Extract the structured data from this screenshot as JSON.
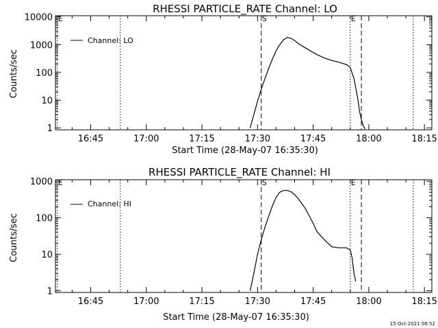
{
  "footer": {
    "timestamp": "15-Oct-2021 08:52"
  },
  "chart_data": [
    {
      "type": "line",
      "title": "RHESSI PARTICLE_RATE Channel: LO",
      "xlabel": "Start Time (28-May-07 16:35:30)",
      "ylabel": "Counts/sec",
      "legend": "Channel: LO",
      "legend_position": "top-left",
      "y_scale": "log",
      "xlim": [
        "16:35:30",
        "18:17:00"
      ],
      "ylim": [
        0.85,
        11000
      ],
      "x_ticks": [
        "16:45",
        "17:00",
        "17:15",
        "17:30",
        "17:45",
        "18:00",
        "18:15"
      ],
      "y_ticks": [
        "1",
        "10",
        "100",
        "1000",
        "10000"
      ],
      "markers": [
        {
          "label": "E",
          "time": "16:36:00",
          "style": "dotted"
        },
        {
          "label": "",
          "time": "16:53:00",
          "style": "dotted"
        },
        {
          "label": "S",
          "time": "17:31:00",
          "style": "dashed"
        },
        {
          "label": "E",
          "time": "17:55:00",
          "style": "dotted"
        },
        {
          "label": "",
          "time": "17:58:00",
          "style": "dashed"
        },
        {
          "label": "",
          "time": "18:12:00",
          "style": "dotted"
        }
      ],
      "series": [
        {
          "x": [
            "17:28:00",
            "17:29:00",
            "17:30:00",
            "17:31:00",
            "17:32:00",
            "17:33:00",
            "17:34:00",
            "17:35:00",
            "17:36:00",
            "17:37:00",
            "17:38:00",
            "17:39:00",
            "17:40:00",
            "17:41:00",
            "17:42:00",
            "17:44:00",
            "17:46:00",
            "17:48:00",
            "17:50:00",
            "17:52:00",
            "17:54:00",
            "17:55:00",
            "17:56:00",
            "17:57:00",
            "17:57:30",
            "17:58:00",
            "17:58:30",
            "17:59:00"
          ],
          "values": [
            1,
            3,
            9,
            25,
            60,
            140,
            300,
            600,
            1000,
            1500,
            1800,
            1700,
            1400,
            1100,
            900,
            620,
            440,
            330,
            270,
            230,
            190,
            150,
            60,
            12,
            4,
            2,
            1.2,
            0.9
          ]
        }
      ]
    },
    {
      "type": "line",
      "title": "RHESSI PARTICLE_RATE Channel: HI",
      "xlabel": "Start Time (28-May-07 16:35:30)",
      "ylabel": "Counts/sec",
      "legend": "Channel: HI",
      "legend_position": "top-left",
      "y_scale": "log",
      "xlim": [
        "16:35:30",
        "18:17:00"
      ],
      "ylim": [
        0.9,
        1100
      ],
      "x_ticks": [
        "16:45",
        "17:00",
        "17:15",
        "17:30",
        "17:45",
        "18:00",
        "18:15"
      ],
      "y_ticks": [
        "1",
        "10",
        "100",
        "1000"
      ],
      "markers": [
        {
          "label": "E",
          "time": "16:36:00",
          "style": "dotted"
        },
        {
          "label": "",
          "time": "16:53:00",
          "style": "dotted"
        },
        {
          "label": "S",
          "time": "17:31:00",
          "style": "dashed"
        },
        {
          "label": "E",
          "time": "17:55:00",
          "style": "dotted"
        },
        {
          "label": "",
          "time": "17:58:00",
          "style": "dashed"
        },
        {
          "label": "",
          "time": "18:12:00",
          "style": "dotted"
        }
      ],
      "series": [
        {
          "x": [
            "17:28:00",
            "17:29:00",
            "17:30:00",
            "17:31:00",
            "17:32:00",
            "17:33:00",
            "17:34:00",
            "17:35:00",
            "17:36:00",
            "17:37:00",
            "17:38:00",
            "17:39:00",
            "17:40:00",
            "17:41:00",
            "17:42:00",
            "17:43:00",
            "17:44:00",
            "17:45:00",
            "17:46:00",
            "17:48:00",
            "17:50:00",
            "17:52:00",
            "17:54:00",
            "17:55:00",
            "17:55:30",
            "17:56:00",
            "17:56:30"
          ],
          "values": [
            1,
            3,
            10,
            25,
            55,
            110,
            210,
            360,
            500,
            560,
            560,
            520,
            430,
            330,
            240,
            170,
            110,
            70,
            42,
            25,
            16,
            15,
            15,
            13,
            8,
            3,
            1.8
          ]
        }
      ]
    }
  ]
}
